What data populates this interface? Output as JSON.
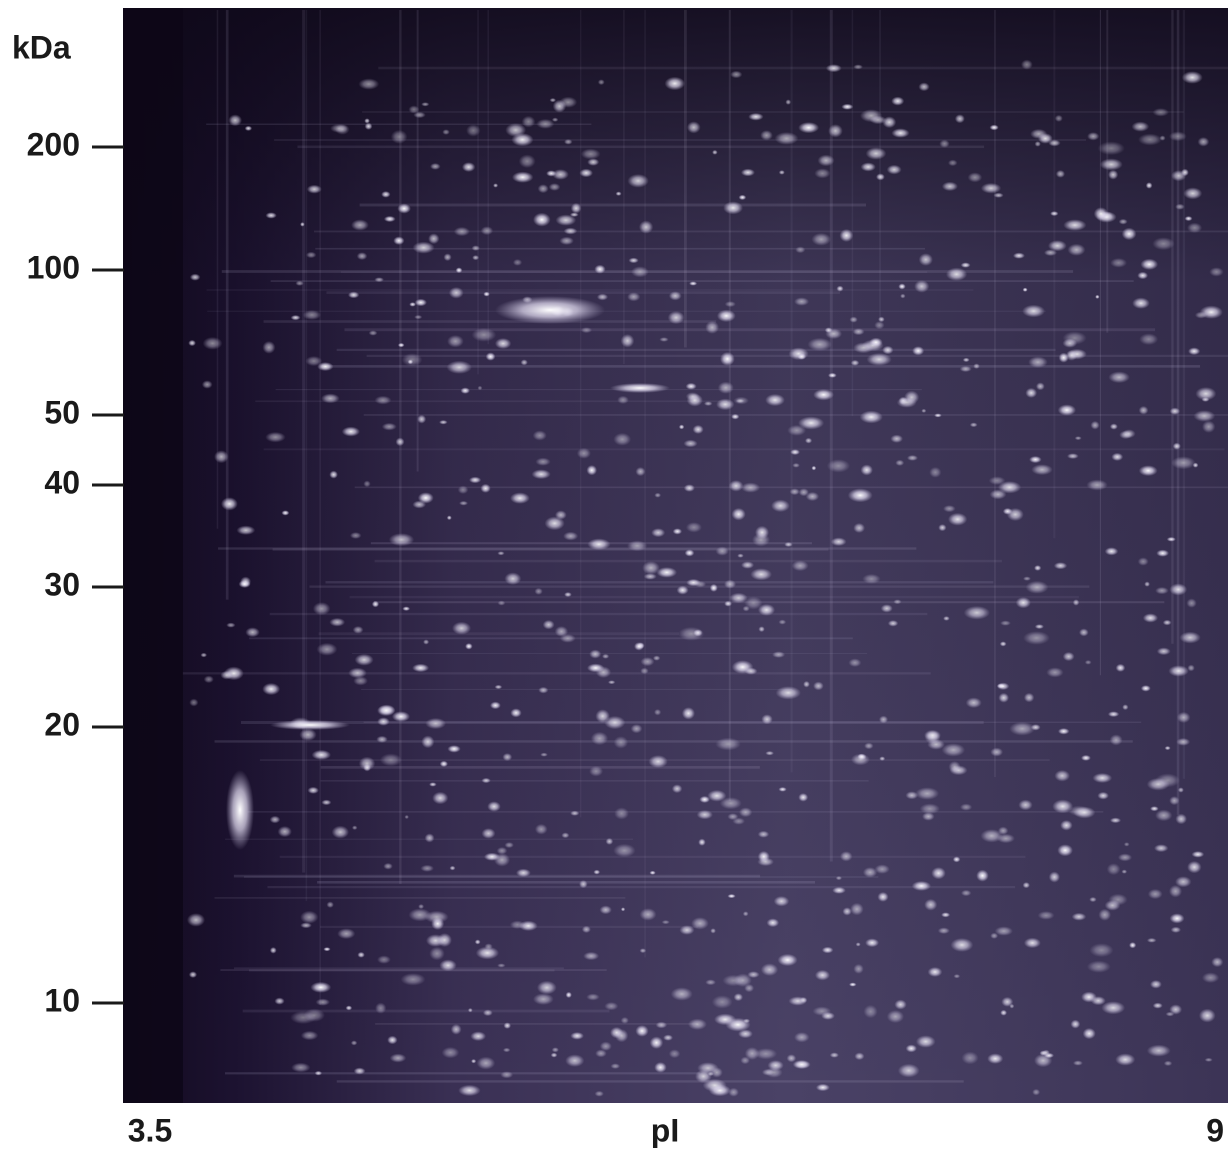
{
  "y_axis": {
    "title": "kDa",
    "ticks": [
      "200",
      "100",
      "50",
      "40",
      "30",
      "20",
      "10"
    ]
  },
  "x_axis": {
    "title": "pI",
    "ticks": [
      "3.5",
      "9"
    ]
  }
}
